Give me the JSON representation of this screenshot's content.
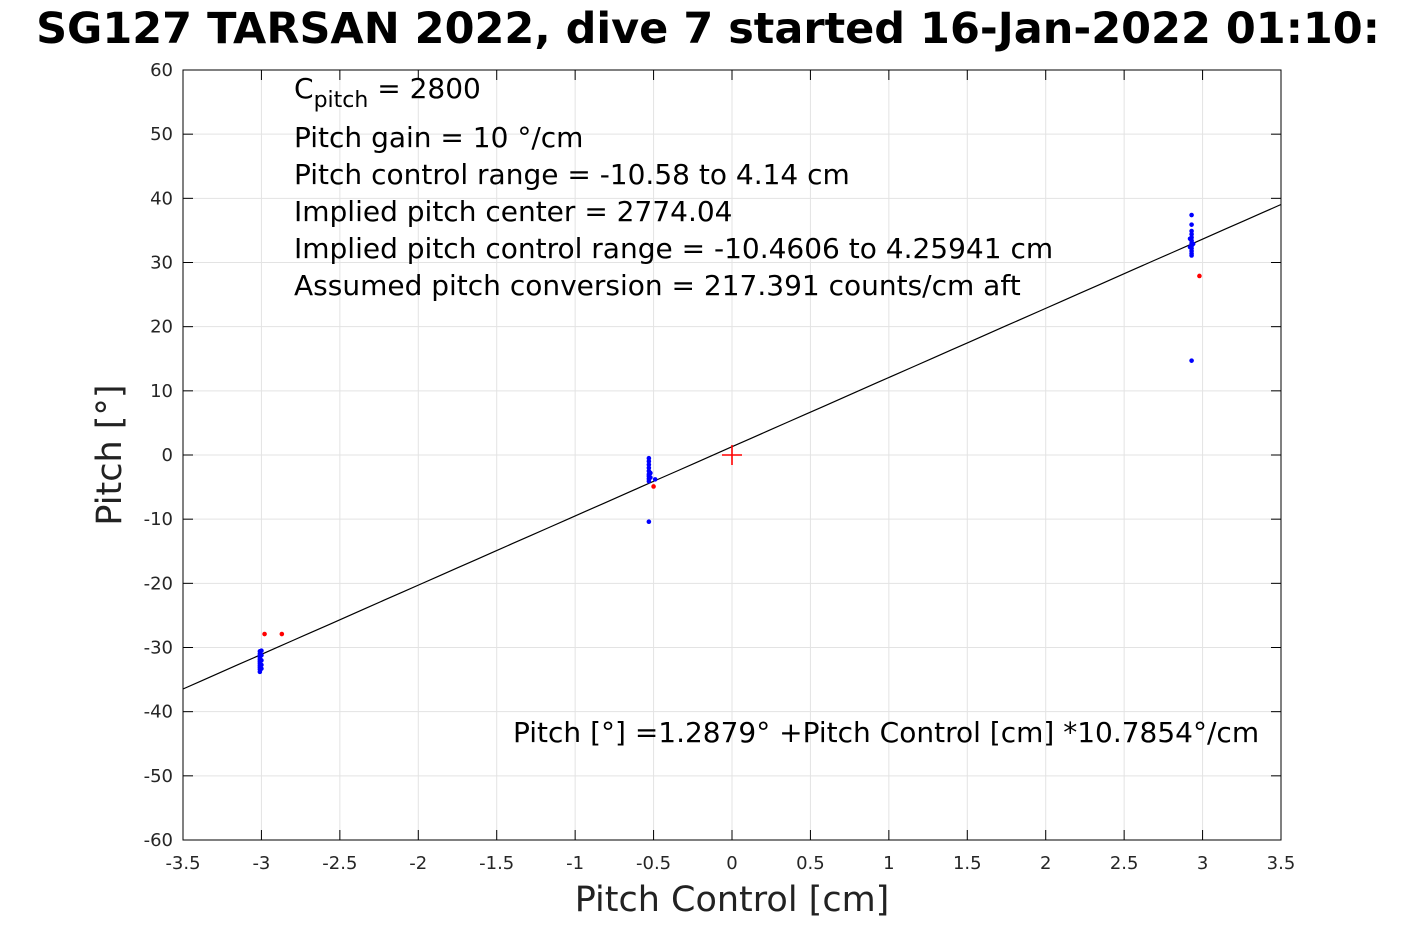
{
  "chart_data": {
    "type": "scatter",
    "title": "SG127 TARSAN 2022, dive 7 started 16-Jan-2022 01:10:",
    "xlabel": "Pitch Control [cm]",
    "ylabel": "Pitch [°]",
    "xlim": [
      -3.5,
      3.5
    ],
    "ylim": [
      -60,
      60
    ],
    "xticks": [
      "-3.5",
      "-3",
      "-2.5",
      "-2",
      "-1.5",
      "-1",
      "-0.5",
      "0",
      "0.5",
      "1",
      "1.5",
      "2",
      "2.5",
      "3",
      "3.5"
    ],
    "yticks": [
      "60",
      "50",
      "40",
      "30",
      "20",
      "10",
      "0",
      "-10",
      "-20",
      "-30",
      "-40",
      "-50",
      "-60"
    ],
    "grid": true,
    "colors": {
      "good": "#0000ff",
      "bad": "#ff0000",
      "fit": "#000000",
      "center": "#ff0000"
    },
    "series": [
      {
        "color": "#0000ff",
        "points": [
          [
            -3.01,
            -30.6
          ],
          [
            -3.01,
            -31.0
          ],
          [
            -3.01,
            -31.3
          ],
          [
            -3.01,
            -31.6
          ],
          [
            -3.01,
            -31.9
          ],
          [
            -3.01,
            -32.2
          ],
          [
            -3.01,
            -32.5
          ],
          [
            -3.01,
            -32.8
          ],
          [
            -3.01,
            -33.1
          ],
          [
            -3.01,
            -33.4
          ],
          [
            -3.01,
            -33.8
          ],
          [
            -3.0,
            -30.5
          ],
          [
            -3.0,
            -31.2
          ],
          [
            -3.0,
            -32.0
          ],
          [
            -3.0,
            -32.7
          ],
          [
            -3.0,
            -33.3
          ],
          [
            -0.53,
            -0.5
          ],
          [
            -0.53,
            -1.0
          ],
          [
            -0.53,
            -1.5
          ],
          [
            -0.53,
            -2.0
          ],
          [
            -0.53,
            -2.5
          ],
          [
            -0.53,
            -3.0
          ],
          [
            -0.53,
            -3.3
          ],
          [
            -0.53,
            -3.7
          ],
          [
            -0.53,
            -4.1
          ],
          [
            -0.52,
            -2.8
          ],
          [
            -0.52,
            -3.5
          ],
          [
            -0.49,
            -3.8
          ],
          [
            -0.53,
            -10.4
          ],
          [
            2.93,
            37.4
          ],
          [
            2.93,
            35.9
          ],
          [
            2.93,
            34.9
          ],
          [
            2.93,
            34.4
          ],
          [
            2.93,
            33.9
          ],
          [
            2.93,
            33.4
          ],
          [
            2.93,
            33.0
          ],
          [
            2.93,
            32.6
          ],
          [
            2.93,
            32.2
          ],
          [
            2.93,
            31.8
          ],
          [
            2.93,
            31.4
          ],
          [
            2.93,
            31.1
          ],
          [
            2.92,
            33.7
          ],
          [
            2.92,
            32.4
          ],
          [
            2.94,
            32.9
          ],
          [
            2.93,
            14.7
          ]
        ]
      },
      {
        "color": "#ff0000",
        "points": [
          [
            -2.98,
            -27.9
          ],
          [
            -2.87,
            -27.9
          ],
          [
            -0.5,
            -4.9
          ],
          [
            2.98,
            27.9
          ]
        ]
      }
    ],
    "fit_line": {
      "intercept": 1.2879,
      "slope": 10.7854,
      "x_range": [
        -3.5,
        3.5
      ],
      "color": "#000000"
    },
    "center_marker": {
      "x": 0,
      "y": 0,
      "color": "#ff0000",
      "shape": "plus"
    },
    "annotations": [
      {
        "prefix": "C",
        "subscript": "pitch",
        "suffix": " = 2800"
      },
      {
        "text": "Pitch gain = 10 °/cm"
      },
      {
        "text": "Pitch control range = -10.58 to 4.14 cm"
      },
      {
        "text": "Implied pitch center = 2774.04"
      },
      {
        "text": "Implied pitch control range = -10.4606 to 4.25941 cm"
      },
      {
        "text": "Assumed pitch conversion = 217.391 counts/cm aft"
      }
    ],
    "fit_label": "Pitch [°] =1.2879° +Pitch Control [cm] *10.7854°/cm"
  }
}
